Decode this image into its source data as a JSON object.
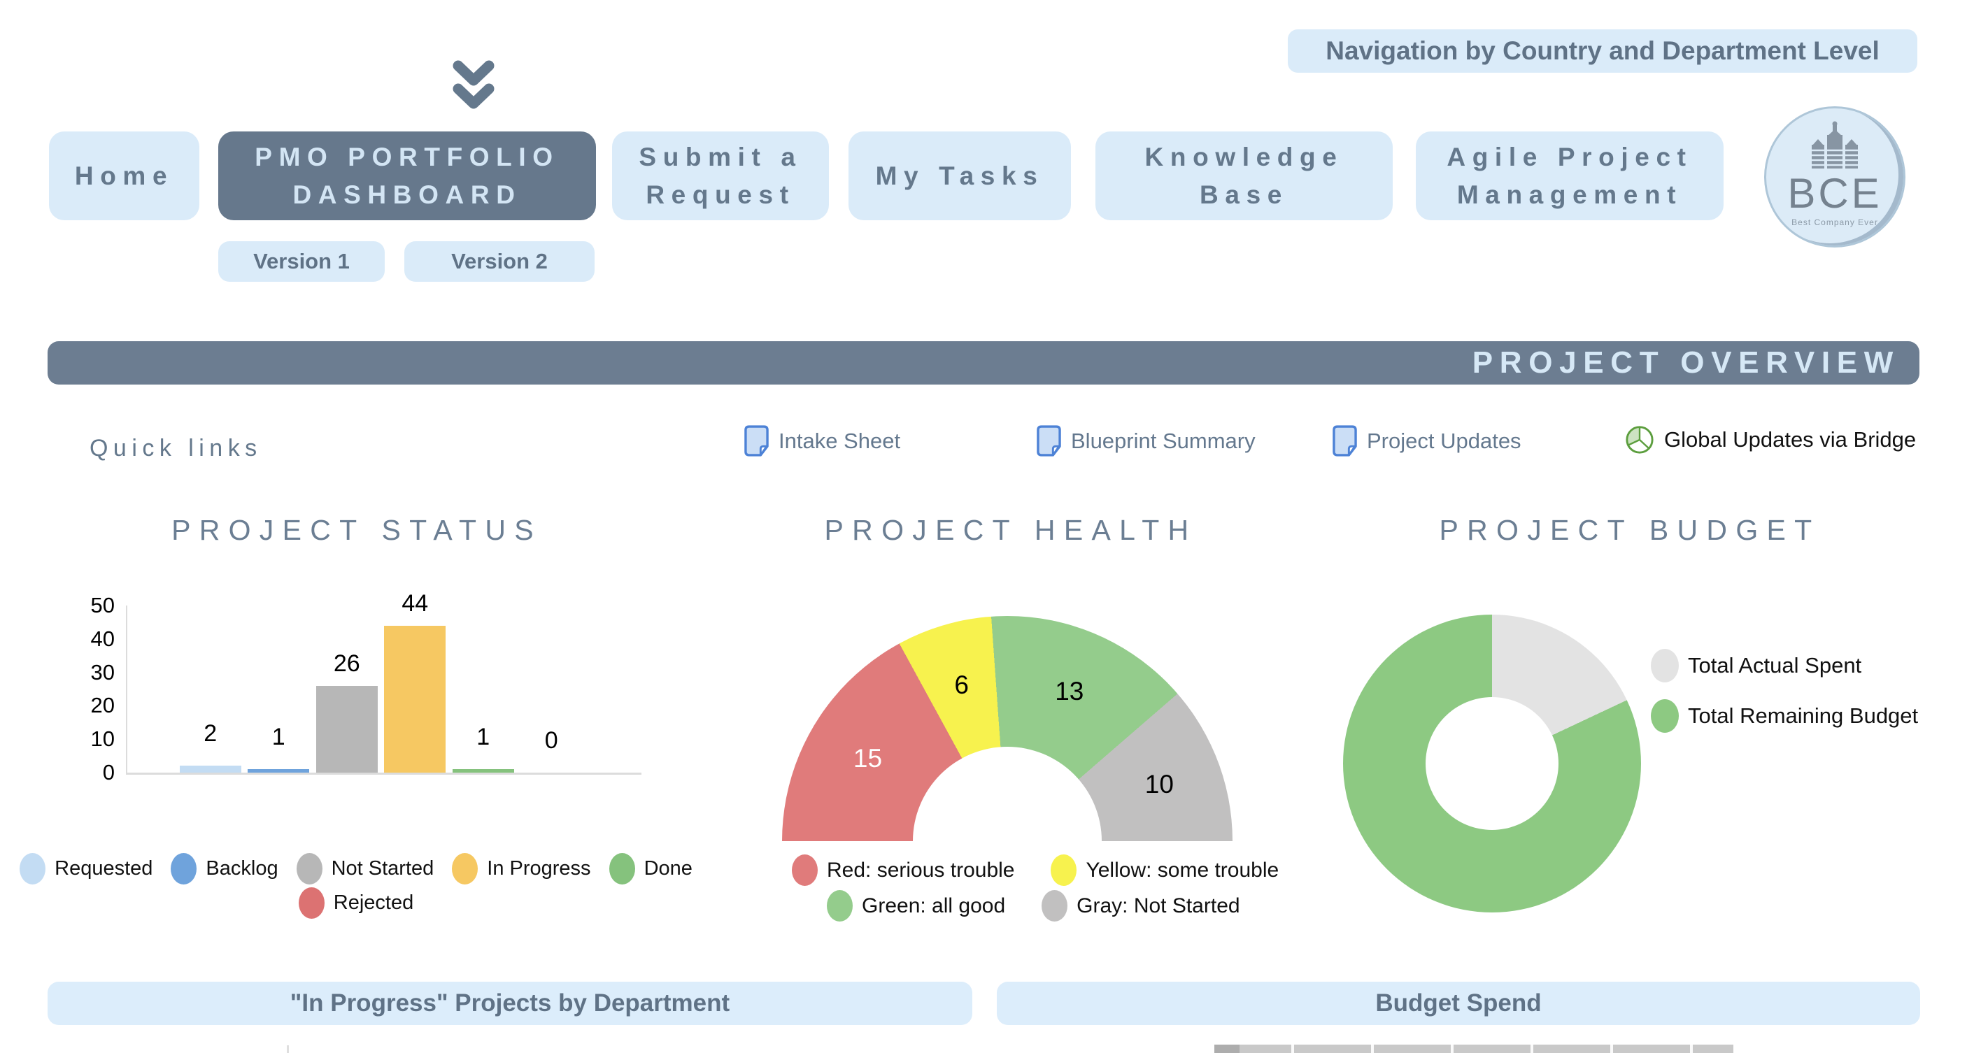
{
  "banner": {
    "label": "Navigation by Country and Department Level"
  },
  "nav": {
    "items": [
      {
        "id": "home",
        "lines": [
          "Home"
        ],
        "active": false
      },
      {
        "id": "pmo-portfolio-dashboard",
        "lines": [
          "PMO PORTFOLIO",
          "DASHBOARD"
        ],
        "active": true
      },
      {
        "id": "submit-a-request",
        "lines": [
          "Submit a",
          "Request"
        ],
        "active": false
      },
      {
        "id": "my-tasks",
        "lines": [
          "My Tasks"
        ],
        "active": false
      },
      {
        "id": "knowledge-base",
        "lines": [
          "Knowledge",
          "Base"
        ],
        "active": false
      },
      {
        "id": "agile-project-management",
        "lines": [
          "Agile Project",
          "Management"
        ],
        "active": false
      }
    ],
    "versions": [
      {
        "label": "Version 1"
      },
      {
        "label": "Version 2"
      }
    ]
  },
  "logo": {
    "text": "BCE",
    "tagline": "Best Company Ever"
  },
  "section_header": {
    "label": "PROJECT OVERVIEW"
  },
  "quick_links": {
    "label": "Quick links",
    "items": [
      {
        "label": "Intake Sheet",
        "icon": "document-icon"
      },
      {
        "label": "Blueprint Summary",
        "icon": "document-icon"
      },
      {
        "label": "Project Updates",
        "icon": "document-icon"
      },
      {
        "label": "Global Updates via Bridge",
        "icon": "pie-chart-icon"
      }
    ]
  },
  "bottom_sections": {
    "left_header": "\"In Progress\" Projects by Department",
    "right_header": "Budget Spend"
  },
  "colors": {
    "accent_light_blue": "#DAEBF9",
    "slate": "#66788C",
    "slate_text": "#5F7286",
    "section_bar": "#6C7D91",
    "light_text_on_dark": "#D6E8F6"
  },
  "chart_data": [
    {
      "type": "bar",
      "title": "PROJECT STATUS",
      "categories": [
        "Requested",
        "Backlog",
        "Not Started",
        "In Progress",
        "Done",
        "Rejected"
      ],
      "values": [
        2,
        1,
        26,
        44,
        1,
        0
      ],
      "colors": [
        "#C3DCF3",
        "#6FA3DC",
        "#B7B7B7",
        "#F6C862",
        "#85C27D",
        "#DC7272"
      ],
      "ylim": [
        0,
        50
      ],
      "yticks": [
        0,
        10,
        20,
        30,
        40,
        50
      ],
      "grid": false,
      "legend_position": "bottom"
    },
    {
      "type": "half-donut-gauge",
      "title": "PROJECT HEALTH",
      "total": 44,
      "segments": [
        {
          "label": "Red: serious trouble",
          "value": 15,
          "color": "#E07B7B",
          "value_label_color": "#FFFFFF"
        },
        {
          "label": "Yellow: some trouble",
          "value": 6,
          "color": "#F7F24E",
          "value_label_color": "#000000"
        },
        {
          "label": "Green: all good",
          "value": 13,
          "color": "#94CC8C",
          "value_label_color": "#000000"
        },
        {
          "label": "Gray: Not Started",
          "value": 10,
          "color": "#C1C0C0",
          "value_label_color": "#000000"
        }
      ],
      "legend_position": "bottom"
    },
    {
      "type": "donut",
      "title": "PROJECT BUDGET",
      "slices": [
        {
          "label": "Total Actual Spent",
          "value": 18,
          "color": "#E3E3E3",
          "estimated": true
        },
        {
          "label": "Total Remaining Budget",
          "value": 82,
          "color": "#8DC982",
          "estimated": true
        }
      ],
      "note": "no numeric labels shown on chart; slice percentages estimated from arc angles",
      "legend_position": "right"
    }
  ]
}
